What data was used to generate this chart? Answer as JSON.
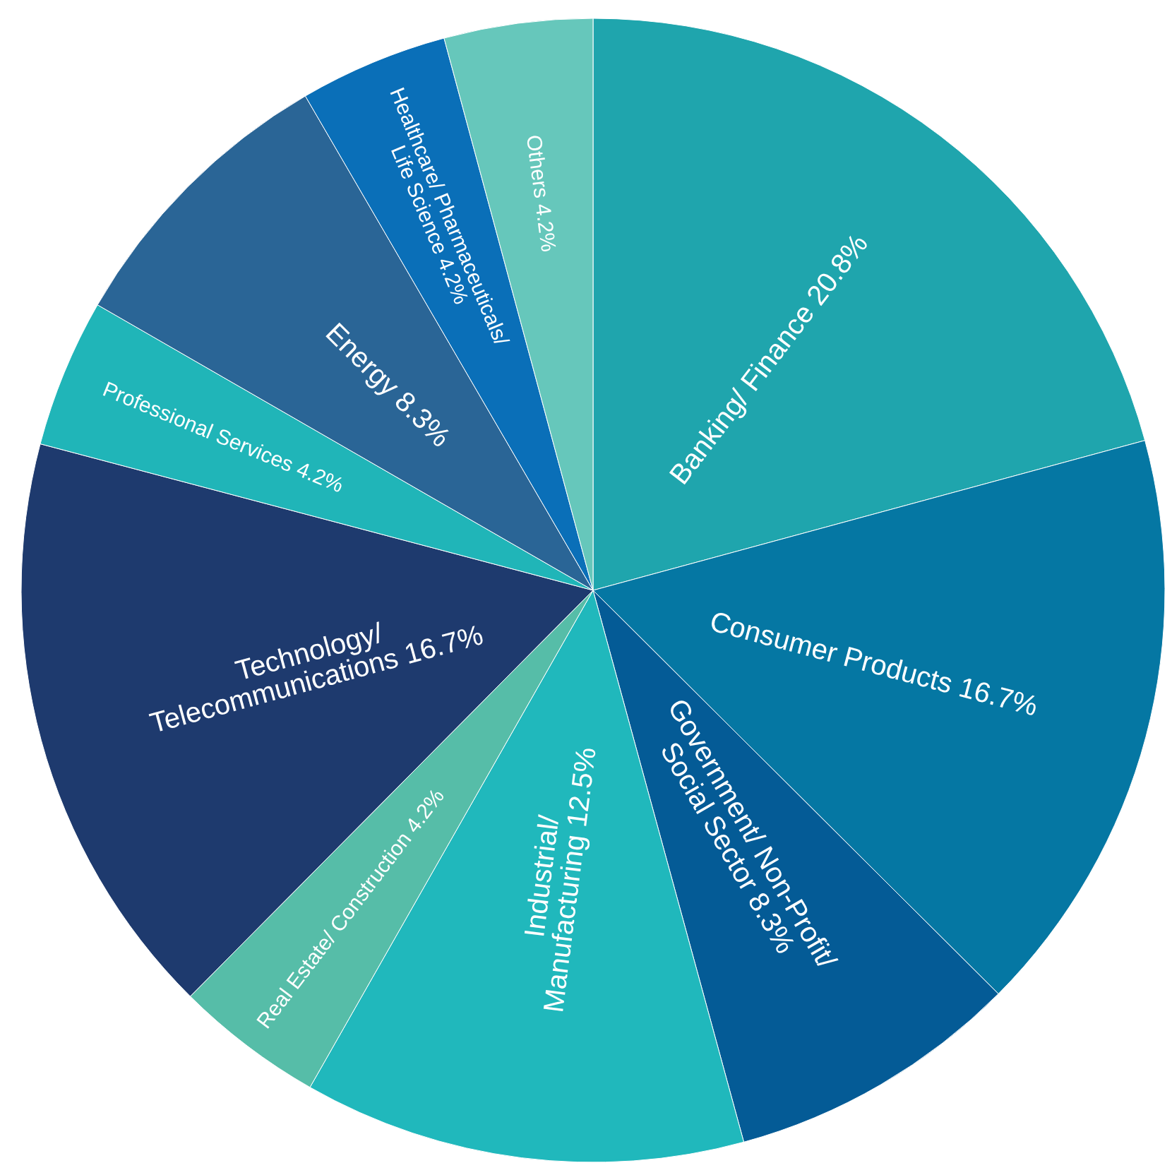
{
  "chart_data": {
    "type": "pie",
    "categories": [
      "Banking/ Finance",
      "Consumer Products",
      "Government/ Non-Profit/\nSocial Sector",
      "Industrial/\nManufacturing",
      "Real Estate/ Construction",
      "Technology/\nTelecommunications",
      "Professional Services",
      "Energy",
      "Healthcare/ Pharmaceuticals/\nLife Science",
      "Others"
    ],
    "values": [
      20.8,
      16.7,
      8.3,
      12.5,
      4.2,
      16.7,
      4.2,
      8.3,
      4.2,
      4.2
    ],
    "colors": [
      "#1fa5ad",
      "#0577a3",
      "#045b96",
      "#20b8bc",
      "#56bda8",
      "#1e3a6e",
      "#20b5b8",
      "#2a6596",
      "#0a6fb8",
      "#66c7bb"
    ],
    "value_labels": [
      "20.8%",
      "16.7%",
      "8.3%",
      "12.5%",
      "4.2%",
      "16.7%",
      "4.2%",
      "8.3%",
      "4.2%",
      "4.2%"
    ],
    "legend": false
  }
}
